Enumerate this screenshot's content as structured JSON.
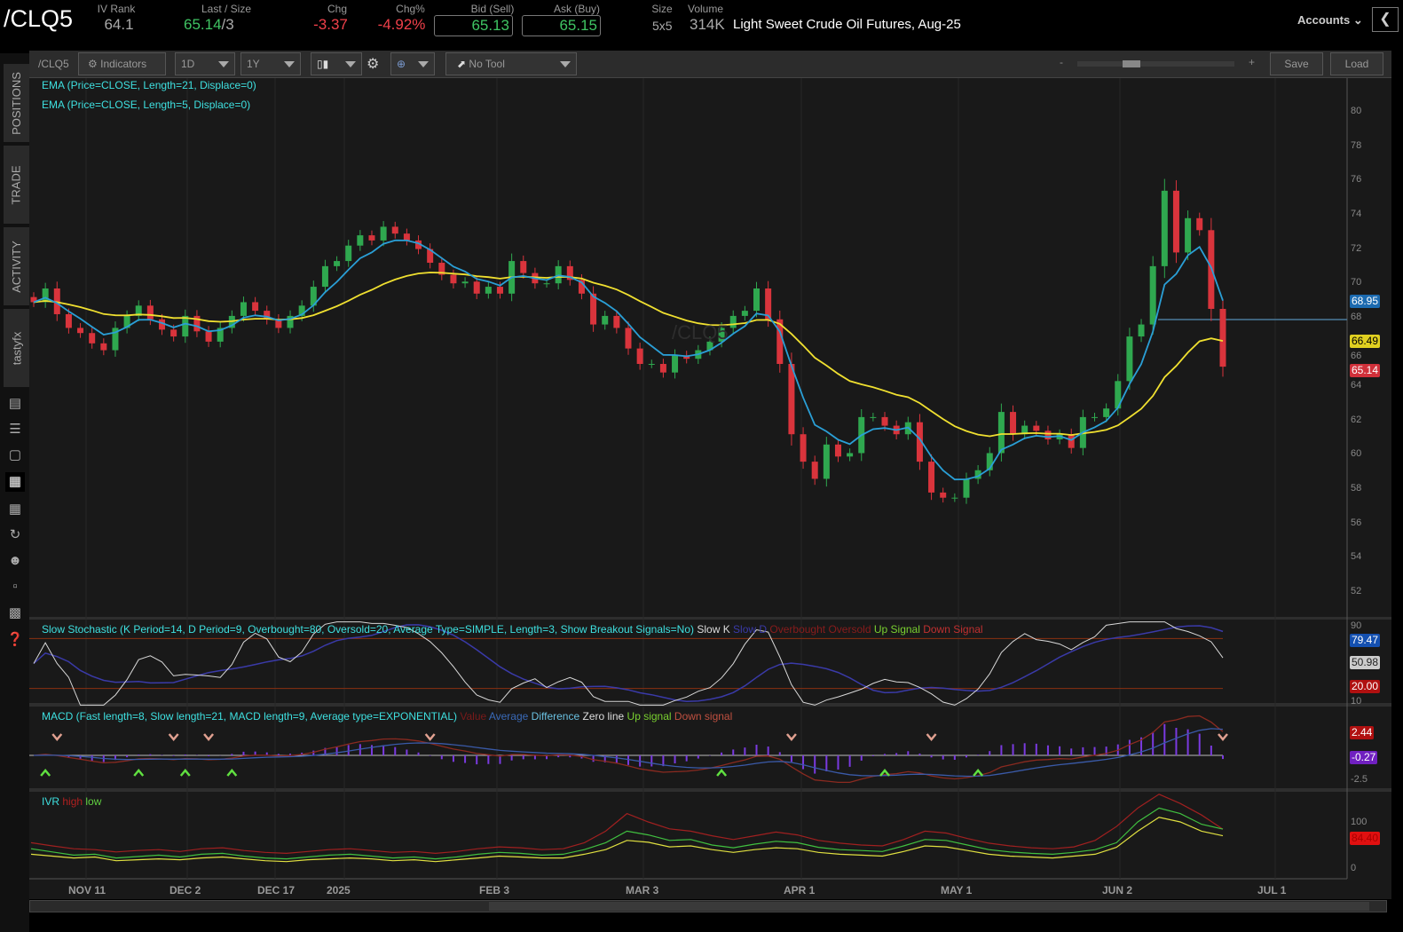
{
  "quote": {
    "symbol": "/CLQ5",
    "iv_rank_label": "IV Rank",
    "iv_rank": "64.1",
    "last_label": "Last / Size",
    "last": "65.14",
    "last_size": "/3",
    "chg_label": "Chg",
    "chg": "-3.37",
    "chgpct_label": "Chg%",
    "chgpct": "-4.92%",
    "bid_label": "Bid (Sell)",
    "bid": "65.13",
    "ask_label": "Ask (Buy)",
    "ask": "65.15",
    "size_label": "Size",
    "size": "5x5",
    "volume_label": "Volume",
    "volume": "314K",
    "description": "Light Sweet Crude Oil Futures, Aug-25",
    "accounts": "Accounts"
  },
  "sidebar": {
    "tabs": [
      "POSITIONS",
      "TRADE",
      "ACTIVITY",
      "tastyfx"
    ],
    "icons": [
      "watchlist-icon",
      "list-icon",
      "tv-icon",
      "chart-icon",
      "grid-icon",
      "history-icon",
      "community-icon",
      "calendar-icon",
      "fx-icon",
      "help-icon"
    ]
  },
  "toolbar": {
    "symbol": "/CLQ5",
    "indicators": "Indicators",
    "interval": "1D",
    "range": "1Y",
    "tool": "No Tool",
    "zoom_minus": "-",
    "zoom_plus": "+",
    "save": "Save",
    "load": "Load"
  },
  "studies": {
    "ema21": "EMA (Price=CLOSE, Length=21, Displace=0)",
    "ema5": "EMA (Price=CLOSE, Length=5, Displace=0)",
    "stoch": "Slow Stochastic (K Period=14, D Period=9, Overbought=80, Oversold=20, Average Type=SIMPLE, Length=3, Show Breakout Signals=No)",
    "stoch_legend": [
      "Slow K",
      "Slow D",
      "Overbought",
      "Oversold",
      "Up Signal",
      "Down Signal"
    ],
    "macd": "MACD (Fast length=8, Slow length=21, MACD length=9, Average type=EXPONENTIAL)",
    "macd_legend": [
      "Value",
      "Average",
      "Difference",
      "Zero line",
      "Up signal",
      "Down signal"
    ],
    "ivr": "IVR",
    "ivr_legend": [
      "high",
      "low"
    ]
  },
  "watermark": "/CLQ5",
  "colors": {
    "up": "#2fa84f",
    "down": "#d9343c",
    "ema21": "#f0e030",
    "ema5": "#2a9fd6",
    "stochK": "#d8d8d8",
    "stochD": "#3a3aa8",
    "macdValue": "#8a2a20",
    "macdAvg": "#3a5aa8",
    "hist": "#7a3ae0",
    "ivrHigh": "#a02020",
    "ivrLow": "#40c040",
    "ivr": "#e0e040"
  },
  "chart_data": [
    {
      "type": "candlestick",
      "ylim": [
        51,
        81
      ],
      "yticks": [
        80,
        78,
        76,
        74,
        72,
        70,
        68,
        66,
        64,
        62,
        60,
        58,
        56,
        54,
        52
      ],
      "xticks": [
        "NOV 11",
        "DEC 2",
        "DEC 17",
        "2025",
        "FEB 3",
        "MAR 3",
        "APR 1",
        "MAY 1",
        "JUN 2",
        "JUL 1"
      ],
      "close": [
        68.9,
        69.7,
        68.2,
        67.4,
        67.1,
        66.5,
        66.1,
        67.4,
        68.1,
        68.7,
        67.9,
        67.3,
        66.9,
        68.1,
        67.2,
        66.6,
        67.4,
        68.1,
        68.9,
        68.4,
        67.9,
        67.4,
        68.1,
        68.7,
        69.8,
        71,
        71.3,
        72.2,
        72.8,
        72.5,
        73.3,
        72.9,
        72.5,
        72,
        71.2,
        70.5,
        70,
        70.1,
        69.4,
        69.8,
        69.4,
        71.3,
        70.6,
        70,
        70,
        71,
        70.2,
        69.4,
        67.6,
        68.1,
        67.4,
        66.2,
        65.3,
        65.3,
        64.8,
        65.8,
        65.6,
        66.1,
        66.6,
        67.4,
        68.1,
        68.4,
        69.7,
        67.9,
        65.3,
        61.2,
        59.6,
        58.6,
        60.6,
        59.9,
        60.1,
        62.2,
        62.2,
        61.7,
        61.2,
        61.9,
        59.6,
        57.8,
        57.5,
        57.5,
        58.6,
        59.1,
        60.1,
        62.5,
        61.2,
        61.7,
        61.4,
        60.9,
        61.2,
        60.4,
        62.2,
        62.2,
        62.7,
        64.3,
        66.9,
        67.6,
        71,
        75.4,
        71.8,
        73.8,
        73.1,
        68.51,
        65.14
      ],
      "last_tags": {
        "ema5": "68.95",
        "ema21": "66.49",
        "last": "65.14"
      }
    },
    {
      "type": "line",
      "name": "Slow Stochastic",
      "yticks": [
        90,
        10
      ],
      "tags": [
        "79.47",
        "50.98",
        "20.00"
      ]
    },
    {
      "type": "bar",
      "name": "MACD",
      "yticks": [
        -2.5
      ],
      "tags": [
        "2.44",
        "-0.27"
      ]
    },
    {
      "type": "line",
      "name": "IVR",
      "yticks": [
        100,
        0
      ],
      "tags": [
        "84.40"
      ],
      "ivr": [
        42,
        35,
        28,
        30,
        22,
        25,
        28,
        24,
        30,
        32,
        26,
        22,
        20,
        24,
        28,
        30,
        26,
        22,
        24,
        20,
        24,
        30,
        34,
        32,
        28,
        30,
        40,
        55,
        80,
        72,
        60,
        62,
        50,
        44,
        52,
        58,
        55,
        45,
        40,
        38,
        36,
        48,
        62,
        60,
        50,
        40,
        35,
        32,
        30,
        34,
        40,
        55,
        100,
        130,
        118,
        95,
        84.4
      ],
      "ivr_high": [
        55,
        48,
        42,
        40,
        35,
        38,
        40,
        36,
        42,
        44,
        38,
        34,
        32,
        36,
        40,
        42,
        38,
        34,
        36,
        32,
        36,
        42,
        46,
        44,
        40,
        42,
        55,
        80,
        118,
        100,
        85,
        80,
        70,
        62,
        70,
        78,
        72,
        60,
        54,
        50,
        48,
        62,
        80,
        76,
        64,
        54,
        48,
        44,
        42,
        46,
        60,
        90,
        130,
        160,
        140,
        115,
        84.4
      ],
      "ivr_low": [
        30,
        26,
        22,
        24,
        16,
        18,
        20,
        18,
        22,
        24,
        20,
        16,
        14,
        18,
        20,
        22,
        20,
        16,
        18,
        14,
        18,
        22,
        26,
        24,
        22,
        22,
        30,
        40,
        60,
        56,
        46,
        48,
        40,
        34,
        40,
        44,
        42,
        34,
        30,
        28,
        26,
        36,
        48,
        46,
        38,
        30,
        26,
        24,
        22,
        26,
        30,
        45,
        80,
        110,
        100,
        80,
        70
      ]
    }
  ]
}
